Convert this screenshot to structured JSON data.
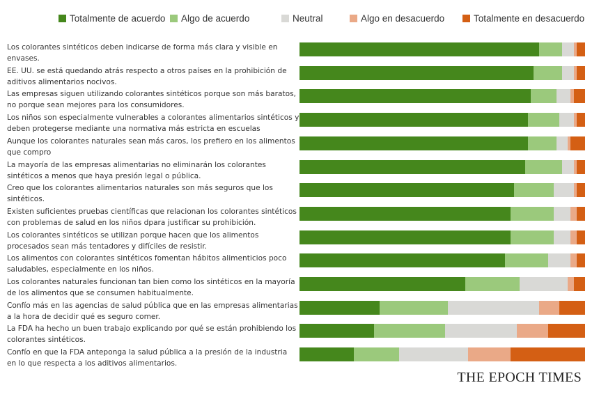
{
  "chart_data": {
    "type": "bar",
    "orientation": "horizontal",
    "stacked": true,
    "normalized_percent": true,
    "xlim": [
      0,
      100
    ],
    "legend_position": "top",
    "grid": false,
    "series": [
      {
        "name": "Totalmente de acuerdo",
        "color": "#45871c",
        "values": [
          84,
          82,
          81,
          80,
          80,
          79,
          75,
          74,
          74,
          72,
          58,
          28,
          26,
          19
        ]
      },
      {
        "name": "Algo de acuerdo",
        "color": "#9bc97c",
        "values": [
          8,
          10,
          9,
          11,
          10,
          13,
          14,
          15,
          15,
          15,
          19,
          24,
          25,
          16
        ]
      },
      {
        "name": "Neutral",
        "color": "#d9d9d6",
        "values": [
          4,
          4,
          5,
          5,
          4,
          4,
          7,
          6,
          6,
          8,
          17,
          32,
          25,
          24
        ]
      },
      {
        "name": "Algo en desacuerdo",
        "color": "#eaa987",
        "values": [
          1,
          1,
          1,
          1,
          1,
          1,
          1,
          2,
          2,
          2,
          2,
          7,
          11,
          15
        ]
      },
      {
        "name": "Totalmente en desacuerdo",
        "color": "#d45f14",
        "values": [
          3,
          3,
          4,
          3,
          5,
          3,
          3,
          3,
          3,
          3,
          4,
          9,
          13,
          26
        ]
      }
    ],
    "categories": [
      [
        "Los colorantes sintéticos deben indicarse de forma más clara y visible en",
        "envases."
      ],
      [
        "EE. UU. se está quedando atrás respecto a otros países en la prohibición de",
        "aditivos alimentarios nocivos."
      ],
      [
        "Las empresas siguen utilizando colorantes sintéticos porque son más baratos,",
        "no porque sean mejores para los consumidores."
      ],
      [
        "Los niños son especialmente vulnerables a colorantes alimentarios sintéticos y",
        "deben protegerse mediante una normativa más estricta en  escuelas"
      ],
      [
        "Aunque los colorantes naturales sean más caros, los prefiero en los alimentos",
        "que compro"
      ],
      [
        "La mayoría de las empresas alimentarias no eliminarán los colorantes",
        "sintéticos a menos que haya presión legal o pública."
      ],
      [
        "Creo que los colorantes alimentarios naturales son más seguros que los",
        "sintéticos."
      ],
      [
        "Existen suficientes pruebas científicas que relacionan los colorantes sintéticos",
        "con problemas de salud en los niños dpara justificar su prohibición."
      ],
      [
        "Los colorantes sintéticos se utilizan porque hacen que los alimentos",
        "procesados sean más tentadores y difíciles de resistir."
      ],
      [
        "Los alimentos con colorantes sintéticos fomentan hábitos alimenticios poco",
        "saludables, especialmente en los niños."
      ],
      [
        "Los colorantes naturales funcionan tan bien como los sintéticos en la mayoría",
        "de los alimentos que se consumen habitualmente."
      ],
      [
        "Confío más en las agencias de salud pública que en las empresas alimentarias",
        "a la hora de decidir qué es seguro comer."
      ],
      [
        "La FDA ha hecho un buen trabajo explicando por qué se están prohibiendo los",
        "colorantes sintéticos."
      ],
      [
        "Confío en que la FDA anteponga la salud pública a la presión de la industria",
        "en lo que respecta a los aditivos alimentarios."
      ]
    ]
  },
  "branding": {
    "logo_text": "THE EPOCH TIMES"
  }
}
